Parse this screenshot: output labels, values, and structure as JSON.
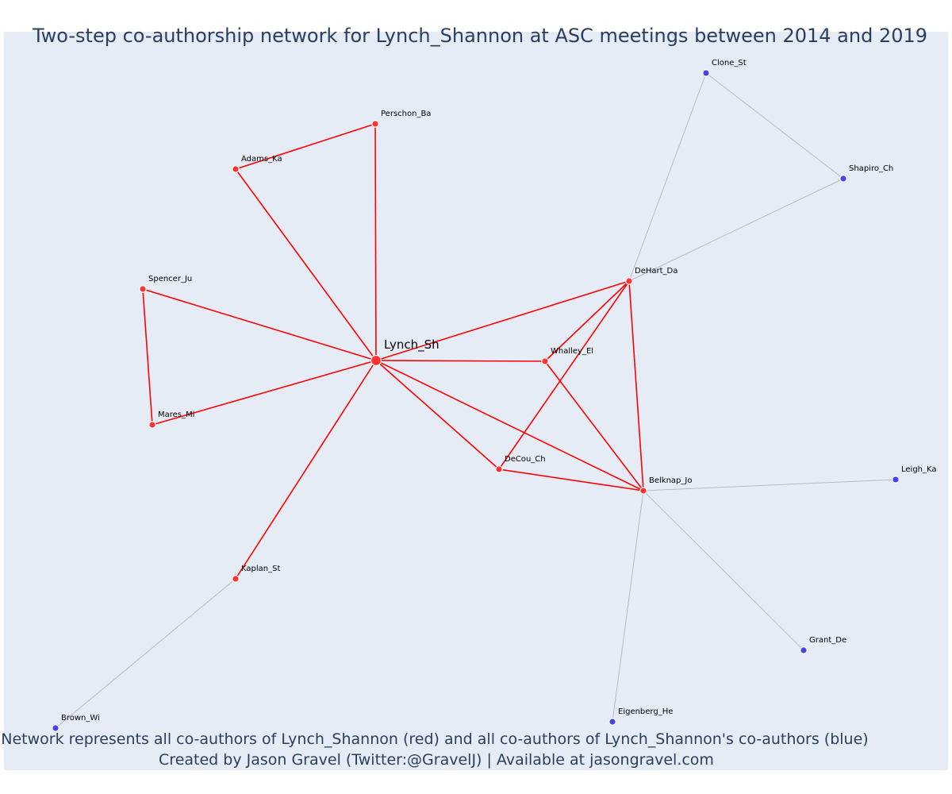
{
  "title": "Two-step co-authorship network for Lynch_Shannon at ASC meetings between 2014 and 2019",
  "footer": {
    "line1": "Network represents all co-authors of Lynch_Shannon (red) and all co-authors of Lynch_Shannon's co-authors (blue)",
    "line2": "Created by Jason Gravel (Twitter:@GravelJ) | Available at jasongravel.com"
  },
  "colors": {
    "background": "#e5ecf6",
    "coauthor": "#ff3333",
    "second_step": "#4444ee",
    "core_edge": "#ff0000",
    "outer_edge": "#b8b8cc",
    "text": "#2a3f5f"
  },
  "network": {
    "nodes": [
      {
        "id": "Lynch_Sh",
        "group": "center"
      },
      {
        "id": "Perschon_Ba",
        "group": "coauthor"
      },
      {
        "id": "Adams_Ka",
        "group": "coauthor"
      },
      {
        "id": "Spencer_Ju",
        "group": "coauthor"
      },
      {
        "id": "Mares_Mi",
        "group": "coauthor"
      },
      {
        "id": "Whalley_El",
        "group": "coauthor"
      },
      {
        "id": "DeHart_Da",
        "group": "coauthor"
      },
      {
        "id": "DeCou_Ch",
        "group": "coauthor"
      },
      {
        "id": "Belknap_Jo",
        "group": "coauthor"
      },
      {
        "id": "Kaplan_St",
        "group": "coauthor"
      },
      {
        "id": "Clone_St",
        "group": "second"
      },
      {
        "id": "Shapiro_Ch",
        "group": "second"
      },
      {
        "id": "Leigh_Ka",
        "group": "second"
      },
      {
        "id": "Grant_De",
        "group": "second"
      },
      {
        "id": "Eigenberg_He",
        "group": "second"
      },
      {
        "id": "Brown_Wi",
        "group": "second"
      }
    ],
    "edges": [
      [
        "Lynch_Sh",
        "Perschon_Ba"
      ],
      [
        "Lynch_Sh",
        "Adams_Ka"
      ],
      [
        "Adams_Ka",
        "Perschon_Ba"
      ],
      [
        "Lynch_Sh",
        "Spencer_Ju"
      ],
      [
        "Lynch_Sh",
        "Mares_Mi"
      ],
      [
        "Spencer_Ju",
        "Mares_Mi"
      ],
      [
        "Lynch_Sh",
        "DeHart_Da"
      ],
      [
        "Lynch_Sh",
        "Whalley_El"
      ],
      [
        "Lynch_Sh",
        "DeCou_Ch"
      ],
      [
        "Lynch_Sh",
        "Belknap_Jo"
      ],
      [
        "Lynch_Sh",
        "Kaplan_St"
      ],
      [
        "DeHart_Da",
        "Whalley_El"
      ],
      [
        "DeHart_Da",
        "DeCou_Ch"
      ],
      [
        "DeHart_Da",
        "Belknap_Jo"
      ],
      [
        "Whalley_El",
        "Belknap_Jo"
      ],
      [
        "DeCou_Ch",
        "Belknap_Jo"
      ],
      [
        "DeHart_Da",
        "Clone_St"
      ],
      [
        "DeHart_Da",
        "Shapiro_Ch"
      ],
      [
        "Clone_St",
        "Shapiro_Ch"
      ],
      [
        "Belknap_Jo",
        "Leigh_Ka"
      ],
      [
        "Belknap_Jo",
        "Grant_De"
      ],
      [
        "Belknap_Jo",
        "Eigenberg_He"
      ],
      [
        "Kaplan_St",
        "Brown_Wi"
      ]
    ]
  }
}
